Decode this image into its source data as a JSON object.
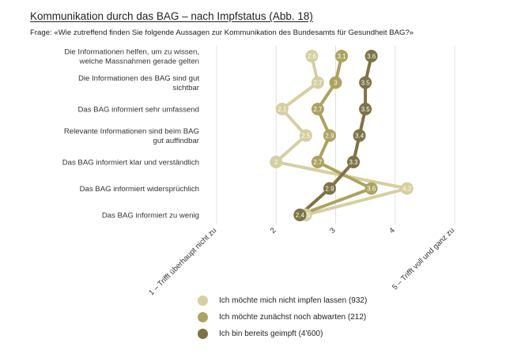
{
  "title": "Kommunikation durch das BAG – nach Impfstatus  (Abb. 18)",
  "subtitle": "Frage: «Wie zutreffend finden Sie folgende Aussagen zur Kommunikation des Bundesamts für Gesundheit BAG?»",
  "chart_data": {
    "type": "line",
    "orientation": "horizontal-dot-plot",
    "categories": [
      "Die Informationen helfen, um zu wissen, welche Massnahmen gerade gelten",
      "Die Informationen des BAG sind gut sichtbar",
      "Das BAG informiert sehr umfassend",
      "Relevante Informationen sind beim BAG gut auffindbar",
      "Das BAG informiert klar und verständlich",
      "Das BAG informiert widersprüchlich",
      "Das BAG informiert zu wenig"
    ],
    "series": [
      {
        "name": "Ich möchte mich nicht impfen lassen (932)",
        "color": "#d6cfa0",
        "values": [
          2.6,
          2.7,
          2.1,
          2.5,
          2,
          4.2,
          2.5
        ]
      },
      {
        "name": "Ich möchte zunächst noch abwarten (212)",
        "color": "#ada35e",
        "values": [
          3.1,
          3,
          2.7,
          2.9,
          2.7,
          3.6,
          2.4
        ]
      },
      {
        "name": "Ich bin bereits geimpft (4'600)",
        "color": "#7d7345",
        "values": [
          3.6,
          3.5,
          3.5,
          3.4,
          3.3,
          2.9,
          2.4
        ]
      }
    ],
    "xlim": [
      1,
      5
    ],
    "xticks": [
      {
        "value": 1,
        "label": "1 – Trifft überhaupt nicht zu"
      },
      {
        "value": 2,
        "label": "2"
      },
      {
        "value": 3,
        "label": "3"
      },
      {
        "value": 4,
        "label": "4"
      },
      {
        "value": 5,
        "label": "5 – Trifft voll und ganz zu"
      }
    ],
    "grid": true,
    "legend_position": "bottom"
  }
}
